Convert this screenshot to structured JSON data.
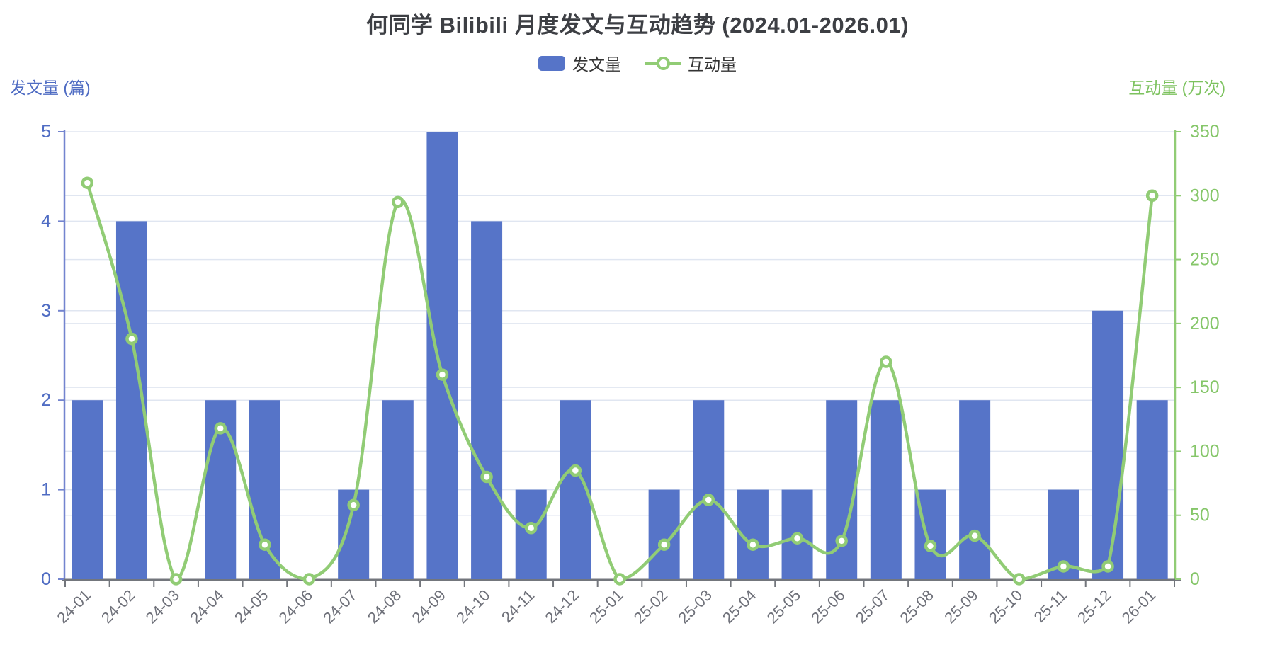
{
  "chart_data": {
    "type": "combo",
    "title": "何同学 Bilibili 月度发文与互动趋势 (2024.01-2026.01)",
    "categories": [
      "24-01",
      "24-02",
      "24-03",
      "24-04",
      "24-05",
      "24-06",
      "24-07",
      "24-08",
      "24-09",
      "24-10",
      "24-11",
      "24-12",
      "25-01",
      "25-02",
      "25-03",
      "25-04",
      "25-05",
      "25-06",
      "25-07",
      "25-08",
      "25-09",
      "25-10",
      "25-11",
      "25-12",
      "26-01"
    ],
    "series": [
      {
        "name": "发文量",
        "type": "bar",
        "axis": "left",
        "color": "#5674c8",
        "values": [
          2,
          4,
          0,
          2,
          2,
          0,
          1,
          2,
          5,
          4,
          1,
          2,
          0,
          1,
          2,
          1,
          1,
          2,
          2,
          1,
          2,
          0,
          1,
          3,
          2
        ]
      },
      {
        "name": "互动量",
        "type": "line",
        "axis": "right",
        "color": "#91cc75",
        "values": [
          310,
          188,
          0,
          118,
          27,
          0,
          58,
          295,
          160,
          80,
          40,
          85,
          0,
          27,
          62,
          27,
          32,
          30,
          170,
          26,
          34,
          0,
          10,
          10,
          300
        ]
      }
    ],
    "left_axis": {
      "name": "发文量 (篇)",
      "min": 0,
      "max": 5,
      "interval": 1,
      "tick_labels": [
        "0",
        "1",
        "2",
        "3",
        "4",
        "5"
      ],
      "color": "#4f6cc3",
      "line_color": "#7384cf"
    },
    "right_axis": {
      "name": "互动量 (万次)",
      "min": 0,
      "max": 350,
      "interval": 50,
      "tick_labels": [
        "0",
        "50",
        "100",
        "150",
        "200",
        "250",
        "300",
        "350"
      ],
      "color": "#85c669",
      "line_color": "#91cc75"
    },
    "x_axis": {
      "label_rotate": 45,
      "label_color": "#6e7079",
      "line_color": "#73767c"
    },
    "legend": {
      "position": "top",
      "items": [
        "发文量",
        "互动量"
      ]
    },
    "grid": {
      "show": true,
      "color": "#e0e6f1"
    }
  }
}
